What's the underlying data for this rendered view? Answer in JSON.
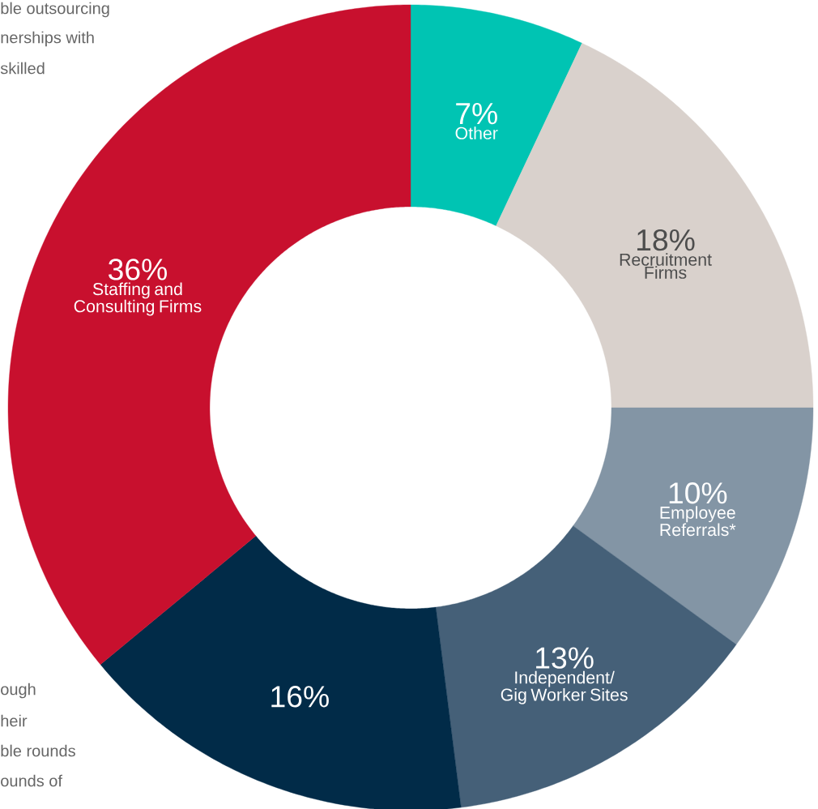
{
  "chart_data": {
    "type": "donut",
    "categories": [
      "Other",
      "Recruitment Firms",
      "Employee Referrals*",
      "Independent/ Gig Worker Sites",
      null,
      "Staffing and Consulting Firms"
    ],
    "values": [
      7,
      18,
      10,
      13,
      16,
      36
    ],
    "value_labels": [
      "7%",
      "18%",
      "10%",
      "13%",
      "16%",
      "36%"
    ],
    "colors": [
      "#00c4b3",
      "#d9d1cc",
      "#8395a5",
      "#456078",
      "#012b48",
      "#c8102e"
    ],
    "annotations": [
      "ble outsourcing",
      "nerships with",
      "skilled",
      "ough",
      "heir",
      "ble rounds",
      "ounds of"
    ]
  }
}
